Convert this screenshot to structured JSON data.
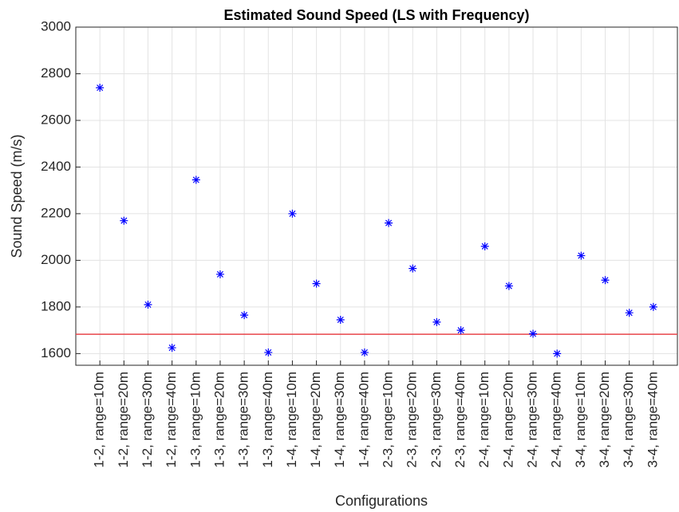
{
  "chart_data": {
    "type": "scatter",
    "title": "Estimated Sound Speed (LS with Frequency)",
    "x_label": "Configurations",
    "y_label": "Sound Speed (m/s)",
    "categories": [
      "1-2, range=10m",
      "1-2, range=20m",
      "1-2, range=30m",
      "1-2, range=40m",
      "1-3, range=10m",
      "1-3, range=20m",
      "1-3, range=30m",
      "1-3, range=40m",
      "1-4, range=10m",
      "1-4, range=20m",
      "1-4, range=30m",
      "1-4, range=40m",
      "2-3, range=10m",
      "2-3, range=20m",
      "2-3, range=30m",
      "2-3, range=40m",
      "2-4, range=10m",
      "2-4, range=20m",
      "2-4, range=30m",
      "2-4, range=40m",
      "3-4, range=10m",
      "3-4, range=20m",
      "3-4, range=30m",
      "3-4, range=40m"
    ],
    "values": [
      2740,
      2170,
      1810,
      1625,
      2345,
      1940,
      1765,
      1605,
      2200,
      1900,
      1745,
      1605,
      2160,
      1965,
      1735,
      1700,
      2060,
      1890,
      1685,
      1600,
      2020,
      1915,
      1775,
      1800
    ],
    "color": "#0000ff",
    "reference_line": 1683,
    "reference_color": "#e8444a",
    "ylim": [
      1550,
      3000
    ],
    "yticks": [
      1600,
      1800,
      2000,
      2200,
      2400,
      2600,
      2800,
      3000
    ],
    "grid": true
  }
}
